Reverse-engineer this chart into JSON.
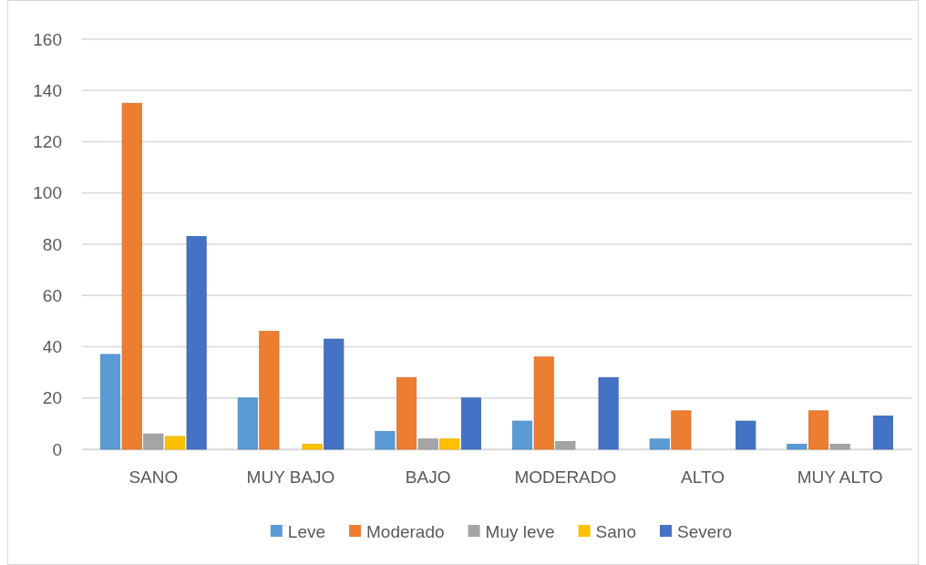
{
  "chart_data": {
    "type": "bar",
    "categories": [
      "SANO",
      "MUY BAJO",
      "BAJO",
      "MODERADO",
      "ALTO",
      "MUY ALTO"
    ],
    "series": [
      {
        "name": "Leve",
        "color": "#5b9bd5",
        "values": [
          37,
          20,
          7,
          11,
          4,
          2
        ]
      },
      {
        "name": "Moderado",
        "color": "#ed7d31",
        "values": [
          135,
          46,
          28,
          36,
          15,
          15
        ]
      },
      {
        "name": "Muy leve",
        "color": "#a5a5a5",
        "values": [
          6,
          0,
          4,
          3,
          0,
          2
        ]
      },
      {
        "name": "Sano",
        "color": "#ffc000",
        "values": [
          5,
          2,
          4,
          0,
          0,
          0
        ]
      },
      {
        "name": "Severo",
        "color": "#4472c4",
        "values": [
          83,
          43,
          20,
          28,
          11,
          13
        ]
      }
    ],
    "ylim": [
      0,
      160
    ],
    "yticks": [
      0,
      20,
      40,
      60,
      80,
      100,
      120,
      140,
      160
    ],
    "grid": "y",
    "legend": "bottom"
  }
}
